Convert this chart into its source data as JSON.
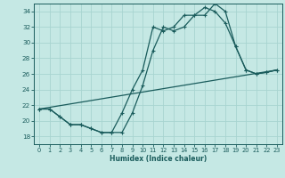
{
  "xlabel": "Humidex (Indice chaleur)",
  "bg_color": "#c5e8e4",
  "grid_color": "#a8d4d0",
  "line_color": "#1a5c5c",
  "xlim": [
    -0.5,
    23.5
  ],
  "ylim": [
    17,
    35
  ],
  "yticks": [
    18,
    20,
    22,
    24,
    26,
    28,
    30,
    32,
    34
  ],
  "xticks": [
    0,
    1,
    2,
    3,
    4,
    5,
    6,
    7,
    8,
    9,
    10,
    11,
    12,
    13,
    14,
    15,
    16,
    17,
    18,
    19,
    20,
    21,
    22,
    23
  ],
  "line1_x": [
    0,
    1,
    2,
    3,
    4,
    5,
    6,
    7,
    8,
    9,
    10,
    11,
    12,
    13,
    14,
    15,
    16,
    17,
    18,
    19,
    20,
    21,
    22,
    23
  ],
  "line1_y": [
    21.5,
    21.5,
    20.5,
    19.5,
    19.5,
    19.0,
    18.5,
    18.5,
    18.5,
    21.0,
    24.5,
    29.0,
    32.0,
    31.5,
    32.0,
    33.5,
    33.5,
    35.0,
    34.0,
    29.5,
    26.5,
    26.0,
    26.2,
    26.5
  ],
  "line2_x": [
    0,
    1,
    2,
    3,
    4,
    5,
    6,
    7,
    8,
    9,
    10,
    11,
    12,
    13,
    14,
    15,
    16,
    17,
    18,
    19,
    20,
    21,
    22,
    23
  ],
  "line2_y": [
    21.5,
    21.5,
    20.5,
    19.5,
    19.5,
    19.0,
    18.5,
    18.5,
    21.0,
    24.0,
    26.5,
    32.0,
    31.5,
    32.0,
    33.5,
    33.5,
    34.5,
    34.0,
    32.5,
    29.5,
    26.5,
    26.0,
    26.2,
    26.5
  ],
  "line3_x": [
    0,
    23
  ],
  "line3_y": [
    21.5,
    26.5
  ]
}
